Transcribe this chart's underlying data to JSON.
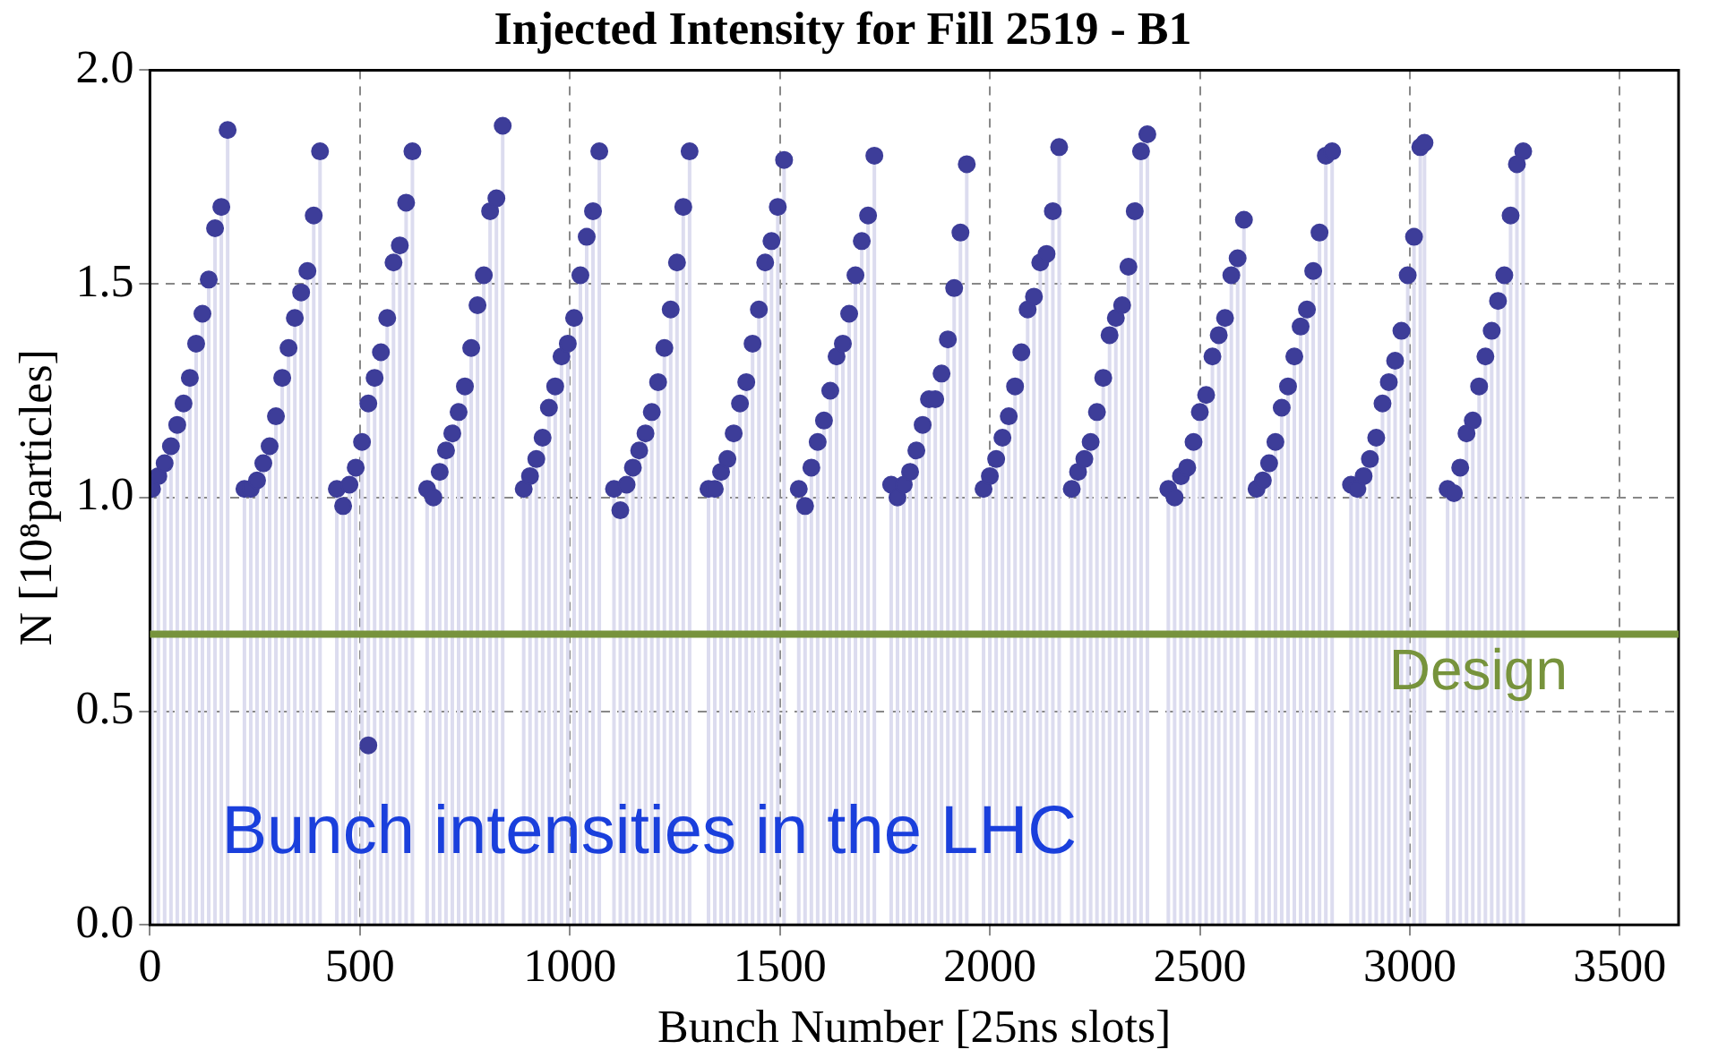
{
  "chart_data": {
    "type": "lollipop",
    "title": "Injected Intensity for Fill 2519 - B1",
    "xlabel": "Bunch Number [25ns slots]",
    "ylabel": "N [10⁸particles]",
    "color": "#3d3d99",
    "marker": "circle",
    "grid": true,
    "x": [
      5,
      20,
      35,
      50,
      65,
      80,
      95,
      110,
      125,
      140,
      155,
      170,
      185,
      225,
      240,
      255,
      270,
      285,
      300,
      315,
      330,
      345,
      360,
      375,
      390,
      405,
      445,
      460,
      475,
      490,
      505,
      520,
      520,
      535,
      550,
      565,
      580,
      595,
      610,
      625,
      660,
      675,
      690,
      705,
      720,
      735,
      750,
      765,
      780,
      795,
      810,
      825,
      840,
      890,
      905,
      920,
      935,
      950,
      965,
      980,
      995,
      1010,
      1025,
      1040,
      1055,
      1070,
      1105,
      1120,
      1135,
      1150,
      1165,
      1180,
      1195,
      1210,
      1225,
      1240,
      1255,
      1270,
      1285,
      1330,
      1345,
      1360,
      1375,
      1390,
      1405,
      1420,
      1435,
      1450,
      1465,
      1480,
      1495,
      1510,
      1545,
      1560,
      1575,
      1590,
      1605,
      1620,
      1635,
      1650,
      1665,
      1680,
      1695,
      1710,
      1725,
      1765,
      1780,
      1795,
      1810,
      1825,
      1840,
      1855,
      1870,
      1885,
      1900,
      1915,
      1930,
      1945,
      1985,
      2000,
      2015,
      2030,
      2045,
      2060,
      2075,
      2090,
      2105,
      2120,
      2135,
      2150,
      2165,
      2195,
      2210,
      2225,
      2240,
      2255,
      2270,
      2285,
      2300,
      2315,
      2330,
      2345,
      2360,
      2375,
      2425,
      2440,
      2455,
      2470,
      2485,
      2500,
      2515,
      2530,
      2545,
      2560,
      2575,
      2590,
      2605,
      2635,
      2650,
      2665,
      2680,
      2695,
      2710,
      2725,
      2740,
      2755,
      2770,
      2785,
      2800,
      2815,
      2860,
      2875,
      2890,
      2905,
      2920,
      2935,
      2950,
      2965,
      2980,
      2995,
      3010,
      3025,
      3035,
      3090,
      3105,
      3120,
      3135,
      3150,
      3165,
      3180,
      3195,
      3210,
      3225,
      3240,
      3255,
      3270
    ],
    "values": [
      1.02,
      1.05,
      1.08,
      1.12,
      1.17,
      1.22,
      1.28,
      1.36,
      1.43,
      1.51,
      1.63,
      1.68,
      1.86,
      1.02,
      1.02,
      1.04,
      1.08,
      1.12,
      1.19,
      1.28,
      1.35,
      1.42,
      1.48,
      1.53,
      1.66,
      1.81,
      1.02,
      0.98,
      1.03,
      1.07,
      1.13,
      1.22,
      0.42,
      1.28,
      1.34,
      1.42,
      1.55,
      1.59,
      1.69,
      1.81,
      1.02,
      1.0,
      1.06,
      1.11,
      1.15,
      1.2,
      1.26,
      1.35,
      1.45,
      1.52,
      1.67,
      1.7,
      1.87,
      1.02,
      1.05,
      1.09,
      1.14,
      1.21,
      1.26,
      1.33,
      1.36,
      1.42,
      1.52,
      1.61,
      1.67,
      1.81,
      1.02,
      0.97,
      1.03,
      1.07,
      1.11,
      1.15,
      1.2,
      1.27,
      1.35,
      1.44,
      1.55,
      1.68,
      1.81,
      1.02,
      1.02,
      1.06,
      1.09,
      1.15,
      1.22,
      1.27,
      1.36,
      1.44,
      1.55,
      1.6,
      1.68,
      1.79,
      1.02,
      0.98,
      1.07,
      1.13,
      1.18,
      1.25,
      1.33,
      1.36,
      1.43,
      1.52,
      1.6,
      1.66,
      1.8,
      1.03,
      1.0,
      1.03,
      1.06,
      1.11,
      1.17,
      1.23,
      1.23,
      1.29,
      1.37,
      1.49,
      1.62,
      1.78,
      1.02,
      1.05,
      1.09,
      1.14,
      1.19,
      1.26,
      1.34,
      1.44,
      1.47,
      1.55,
      1.57,
      1.67,
      1.82,
      1.02,
      1.06,
      1.09,
      1.13,
      1.2,
      1.28,
      1.38,
      1.42,
      1.45,
      1.54,
      1.67,
      1.81,
      1.85,
      1.02,
      1.0,
      1.05,
      1.07,
      1.13,
      1.2,
      1.24,
      1.33,
      1.38,
      1.42,
      1.52,
      1.56,
      1.65,
      1.02,
      1.04,
      1.08,
      1.13,
      1.21,
      1.26,
      1.33,
      1.4,
      1.44,
      1.53,
      1.62,
      1.8,
      1.81,
      1.03,
      1.02,
      1.05,
      1.09,
      1.14,
      1.22,
      1.27,
      1.32,
      1.39,
      1.52,
      1.61,
      1.82,
      1.83,
      1.02,
      1.01,
      1.07,
      1.15,
      1.18,
      1.26,
      1.33,
      1.39,
      1.46,
      1.52,
      1.66,
      1.78,
      1.81
    ],
    "xlim": [
      0,
      3640
    ],
    "xticks": [
      0,
      500,
      1000,
      1500,
      2000,
      2500,
      3000,
      3500
    ],
    "ylim": [
      0,
      2
    ],
    "yticks": [
      {
        "value": 0,
        "label": "0.0"
      },
      {
        "value": 0.5,
        "label": "0.5"
      },
      {
        "value": 1,
        "label": "1.0"
      },
      {
        "value": 1.5,
        "label": "1.5"
      },
      {
        "value": 2,
        "label": "2.0"
      }
    ],
    "ref_lines": [
      {
        "axis": "y",
        "value": 0.68,
        "label": "Design",
        "color": "#77933c"
      }
    ],
    "annotations": [
      "Bunch intensities in the LHC"
    ]
  }
}
